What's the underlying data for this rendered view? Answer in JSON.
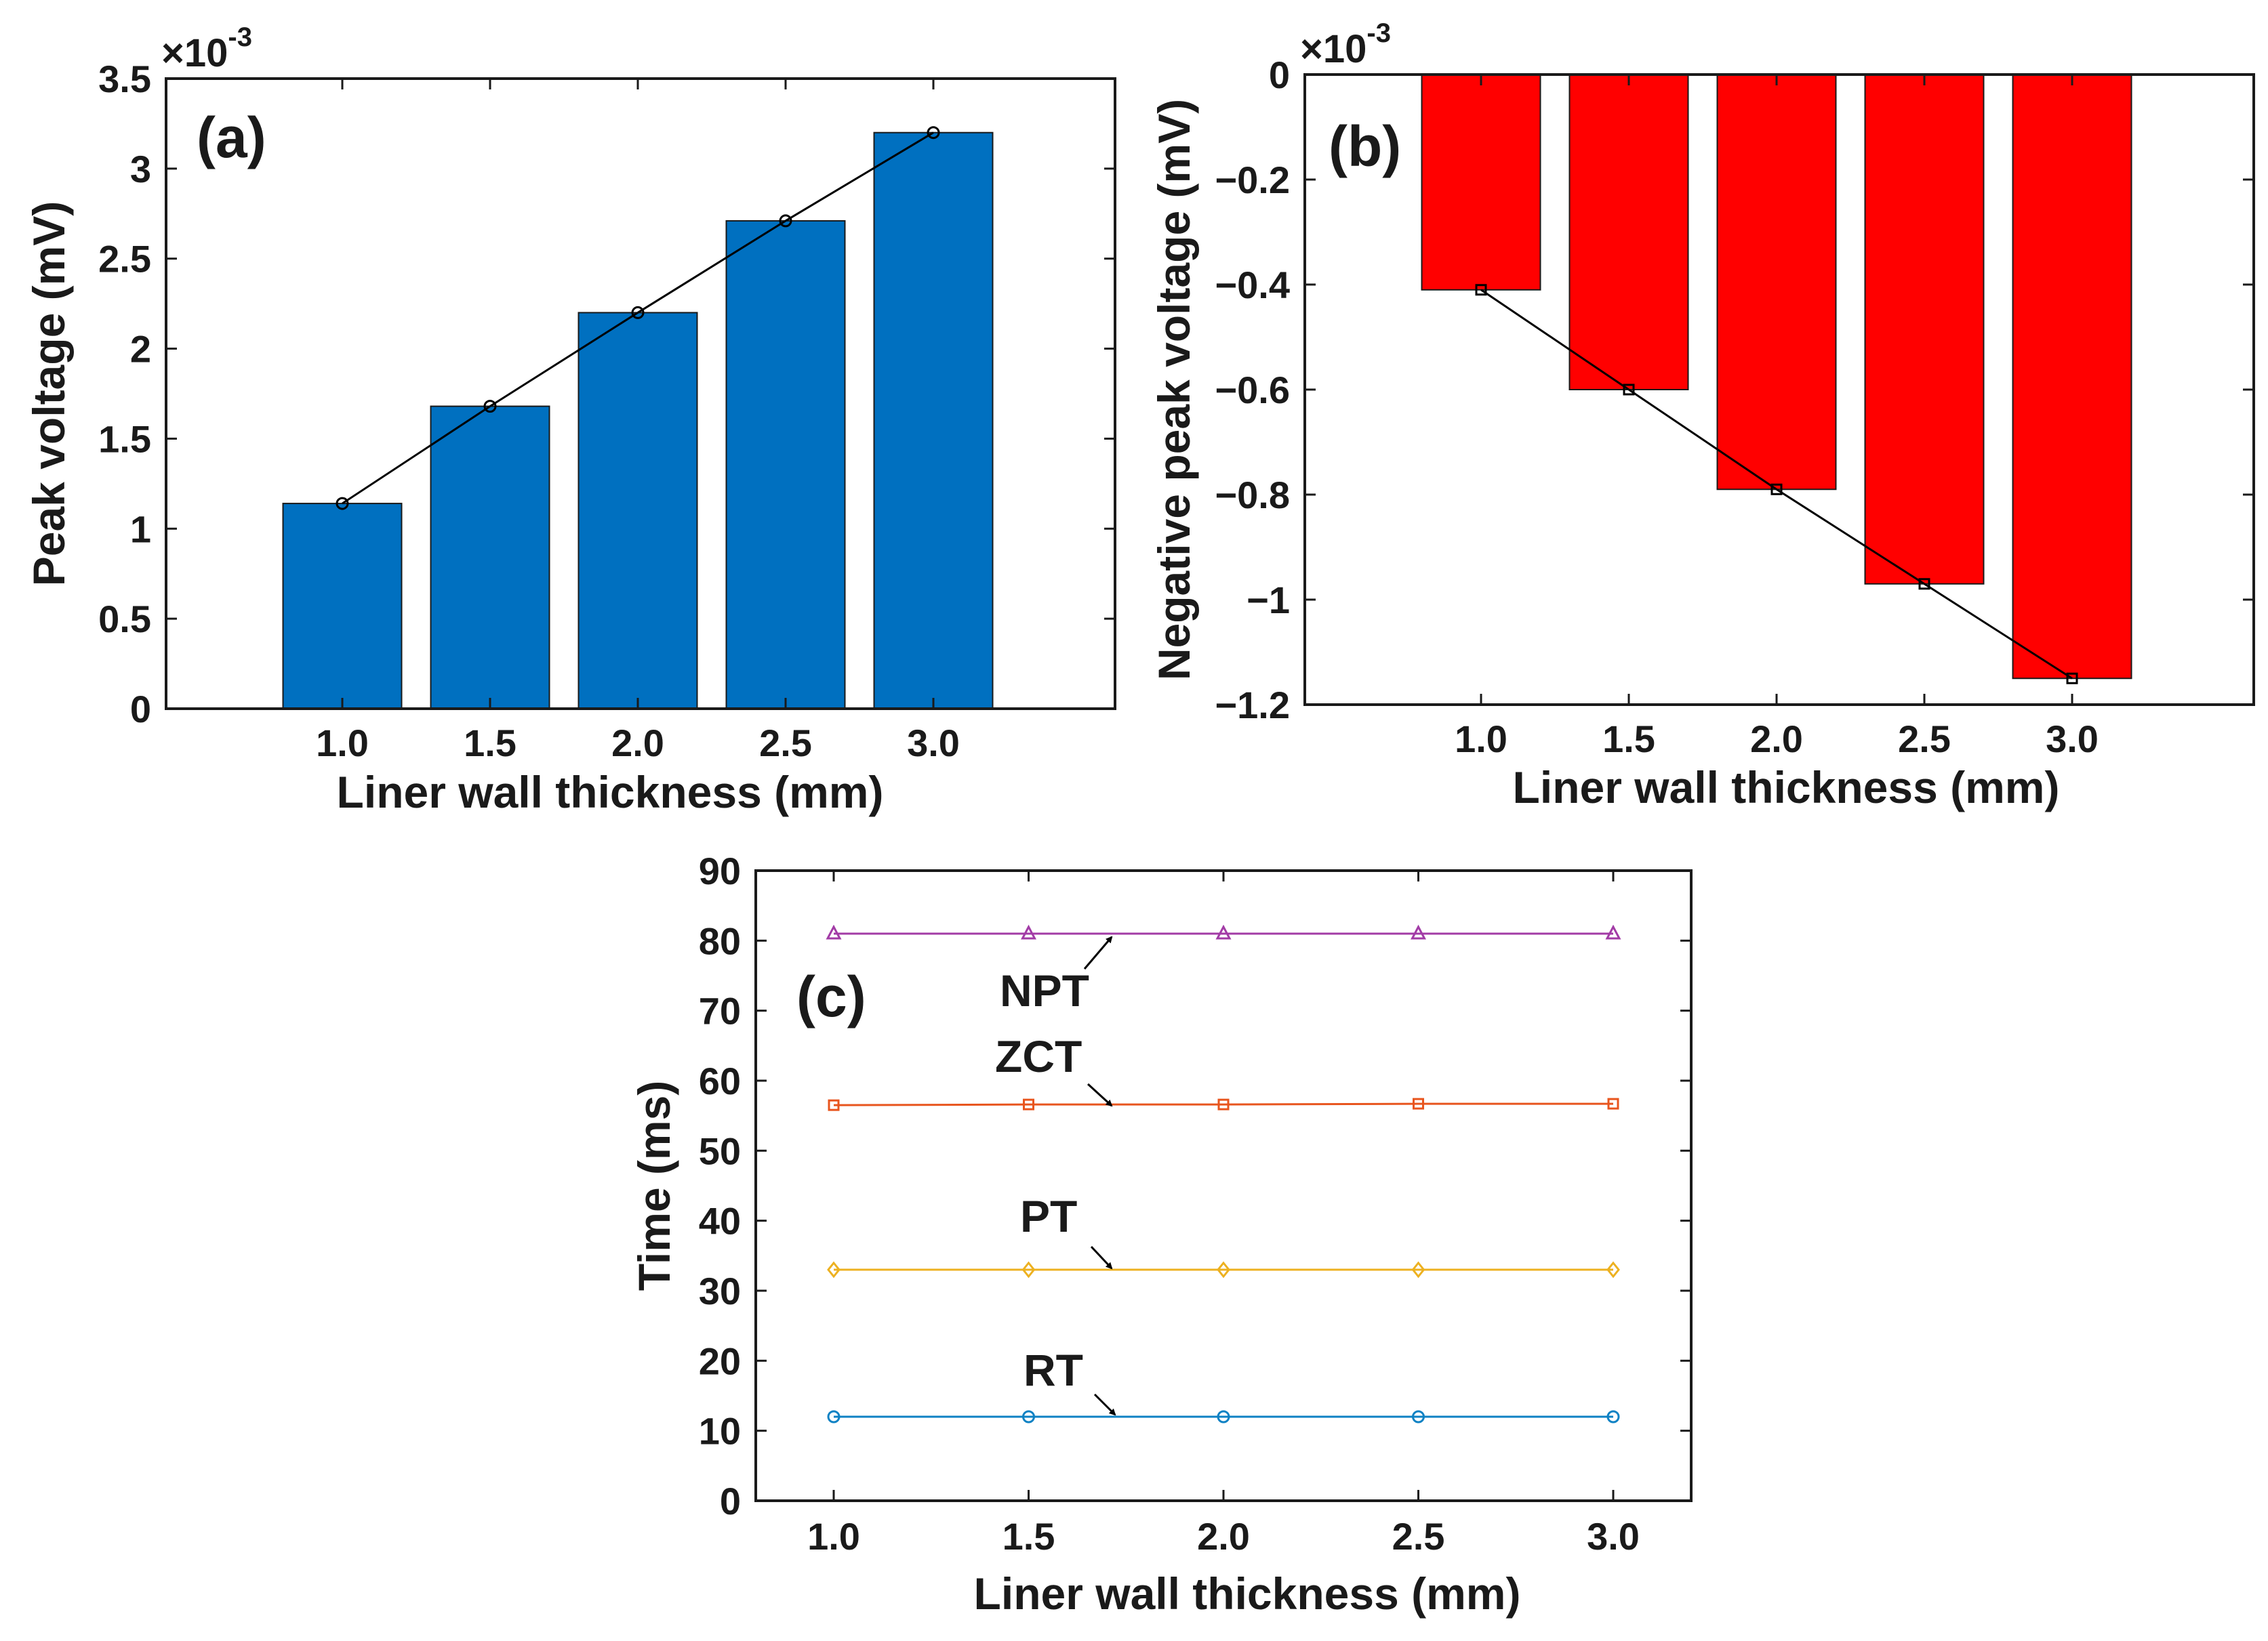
{
  "chart_data": [
    {
      "panel": "a",
      "panel_label": "(a)",
      "type": "bar",
      "categories": [
        "1.0",
        "1.5",
        "2.0",
        "2.5",
        "3.0"
      ],
      "values": [
        1.14,
        1.68,
        2.2,
        2.71,
        3.2
      ],
      "line_values": [
        1.14,
        1.68,
        2.2,
        2.71,
        3.2
      ],
      "line_marker": "circle",
      "xlabel": "Liner wall thickness (mm)",
      "ylabel": "Peak voltage (mV)",
      "ylim": [
        0,
        3.5
      ],
      "yticks": [
        0,
        0.5,
        1,
        1.5,
        2,
        2.5,
        3,
        3.5
      ],
      "ytick_labels": [
        "0",
        "0.5",
        "1",
        "1.5",
        "2",
        "2.5",
        "3",
        "3.5"
      ],
      "scale_base": "×10",
      "scale_exp": "-3",
      "bar_color": "#0070c0",
      "line_color": "#000000"
    },
    {
      "panel": "b",
      "panel_label": "(b)",
      "type": "bar",
      "categories": [
        "1.0",
        "1.5",
        "2.0",
        "2.5",
        "3.0"
      ],
      "values": [
        -0.41,
        -0.6,
        -0.79,
        -0.97,
        -1.15
      ],
      "line_values": [
        -0.41,
        -0.6,
        -0.79,
        -0.97,
        -1.15
      ],
      "line_marker": "square",
      "xlabel": "Liner wall thickness (mm)",
      "ylabel": "Negative peak voltage (mV)",
      "ylim": [
        -1.2,
        0
      ],
      "yticks": [
        0,
        -0.2,
        -0.4,
        -0.6,
        -0.8,
        -1,
        -1.2
      ],
      "ytick_labels": [
        "0",
        "−0.2",
        "−0.4",
        "−0.6",
        "−0.8",
        "−1",
        "−1.2"
      ],
      "scale_base": "×10",
      "scale_exp": "-3",
      "bar_color": "#ff0000",
      "line_color": "#000000"
    },
    {
      "panel": "c",
      "panel_label": "(c)",
      "type": "line",
      "x": [
        1.0,
        1.5,
        2.0,
        2.5,
        3.0
      ],
      "xtick_labels": [
        "1.0",
        "1.5",
        "2.0",
        "2.5",
        "3.0"
      ],
      "xlabel": "Liner wall thickness (mm)",
      "ylabel": "Time (ms)",
      "ylim": [
        0,
        90
      ],
      "xlim": [
        0.8,
        3.2
      ],
      "yticks": [
        0,
        10,
        20,
        30,
        40,
        50,
        60,
        70,
        80,
        90
      ],
      "ytick_labels": [
        "0",
        "10",
        "20",
        "30",
        "40",
        "50",
        "60",
        "70",
        "80",
        "90"
      ],
      "series": [
        {
          "name": "NPT",
          "values": [
            81,
            81,
            81,
            81,
            81
          ],
          "color": "#a23ba6",
          "marker": "triangle"
        },
        {
          "name": "ZCT",
          "values": [
            56.5,
            56.6,
            56.6,
            56.7,
            56.7
          ],
          "color": "#e8551e",
          "marker": "square"
        },
        {
          "name": "PT",
          "values": [
            33,
            33,
            33,
            33,
            33
          ],
          "color": "#edb120",
          "marker": "diamond"
        },
        {
          "name": "RT",
          "values": [
            12,
            12,
            12,
            12,
            12
          ],
          "color": "#0f82c4",
          "marker": "circle"
        }
      ]
    }
  ]
}
